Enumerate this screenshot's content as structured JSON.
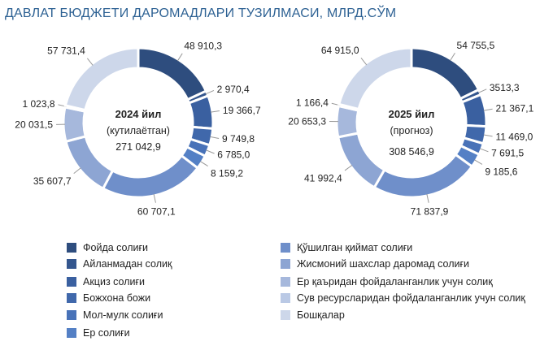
{
  "title": "ДАВЛАТ БЮДЖЕТИ ДАРОМАДЛАРИ ТУЗИЛМАСИ, МЛРД.СЎМ",
  "chart_data": [
    {
      "type": "pie",
      "donut": true,
      "center_title": "2024 йил",
      "center_subtitle": "(кутилаётган)",
      "center_total": "271 042,9",
      "categories": [
        "Фойда солиғи",
        "Айланмадан солиқ",
        "Акциз солиғи",
        "Божхона божи",
        "Мол-мулк солиғи",
        "Ер солиғи",
        "Қўшилган қиймат солиғи",
        "Жисмоний шахслар даромад солиғи",
        "Ер қаъридан фойдаланганлик учун солиқ",
        "Сув ресурсларидан фойдаланганлик учун солиқ",
        "Бошқалар"
      ],
      "values": [
        48910.3,
        2970.4,
        19366.7,
        9749.8,
        6785.0,
        8159.2,
        60707.1,
        35607.7,
        20031.5,
        1023.8,
        57731.4
      ],
      "data_labels": [
        "48 910,3",
        "2 970,4",
        "19 366,7",
        "9 749,8",
        "6 785,0",
        "8 159,2",
        "60 707,1",
        "35 607,7",
        "20 031,5",
        "1 023,8",
        "57 731,4"
      ]
    },
    {
      "type": "pie",
      "donut": true,
      "center_title": "2025 йил",
      "center_subtitle": "(прогноз)",
      "center_total": "308 546,9",
      "categories": [
        "Фойда солиғи",
        "Айланмадан солиқ",
        "Акциз солиғи",
        "Божхона божи",
        "Мол-мулк солиғи",
        "Ер солиғи",
        "Қўшилган қиймат солиғи",
        "Жисмоний шахслар даромад солиғи",
        "Ер қаъридан фойдаланганлик учун солиқ",
        "Сув ресурсларидан фойдаланганлик учун солиқ",
        "Бошқалар"
      ],
      "values": [
        54755.5,
        3513.3,
        21367.1,
        11469.0,
        7691.5,
        9185.6,
        71837.9,
        41992.4,
        20653.3,
        1166.4,
        64915.0
      ],
      "data_labels": [
        "54 755,5",
        "3513,3",
        "21 367,1",
        "11 469,0",
        "7 691,5",
        "9 185,6",
        "71 837,9",
        "41 992,4",
        "20 653,3",
        "1 166,4",
        "64 915,0"
      ]
    }
  ],
  "legend": {
    "placement": "bottom",
    "items": [
      {
        "label": "Фойда солиғи",
        "color": "#2e4d7e"
      },
      {
        "label": "Айланмадан солиқ",
        "color": "#34568e"
      },
      {
        "label": "Акциз солиғи",
        "color": "#3a60a0"
      },
      {
        "label": "Божхона божи",
        "color": "#4068ab"
      },
      {
        "label": "Мол-мулк солиғи",
        "color": "#4872b8"
      },
      {
        "label": "Ер солиғи",
        "color": "#5480c5"
      },
      {
        "label": "Қўшилган қиймат солиғи",
        "color": "#6f8fca"
      },
      {
        "label": "Жисмоний шахслар даромад солиғи",
        "color": "#8da5d3"
      },
      {
        "label": "Ер қаъридан фойдаланганлик учун солиқ",
        "color": "#a6b8dc"
      },
      {
        "label": "Сув ресурсларидан фойдаланганлик учун солиқ",
        "color": "#bac9e5"
      },
      {
        "label": "Бошқалар",
        "color": "#cdd7ea"
      }
    ]
  }
}
